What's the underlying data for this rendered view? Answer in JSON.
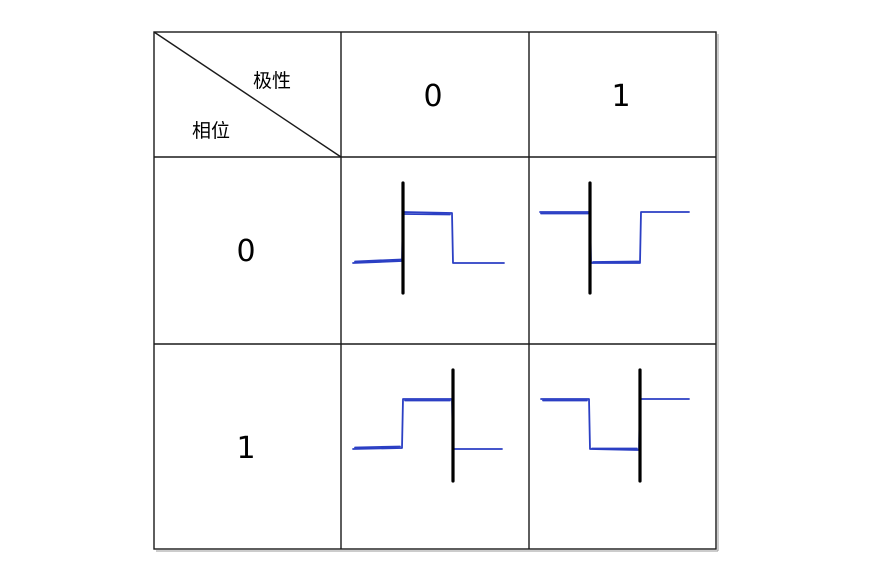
{
  "table": {
    "corner": {
      "column_axis_label": "极性",
      "row_axis_label": "相位"
    },
    "column_headers": [
      "0",
      "1"
    ],
    "row_headers": [
      "0",
      "1"
    ],
    "cells": [
      [
        {
          "phase": "0",
          "polarity": "0",
          "waveform": "high-pulse",
          "edge_at": "leading"
        },
        {
          "phase": "0",
          "polarity": "1",
          "waveform": "low-pulse",
          "edge_at": "leading"
        }
      ],
      [
        {
          "phase": "1",
          "polarity": "0",
          "waveform": "high-pulse",
          "edge_at": "trailing"
        },
        {
          "phase": "1",
          "polarity": "1",
          "waveform": "low-pulse",
          "edge_at": "trailing"
        }
      ]
    ]
  },
  "colors": {
    "grid": "#1a1a1a",
    "waveform": "#2b3fc4",
    "clock_mark": "#000000",
    "background": "#ffffff"
  }
}
